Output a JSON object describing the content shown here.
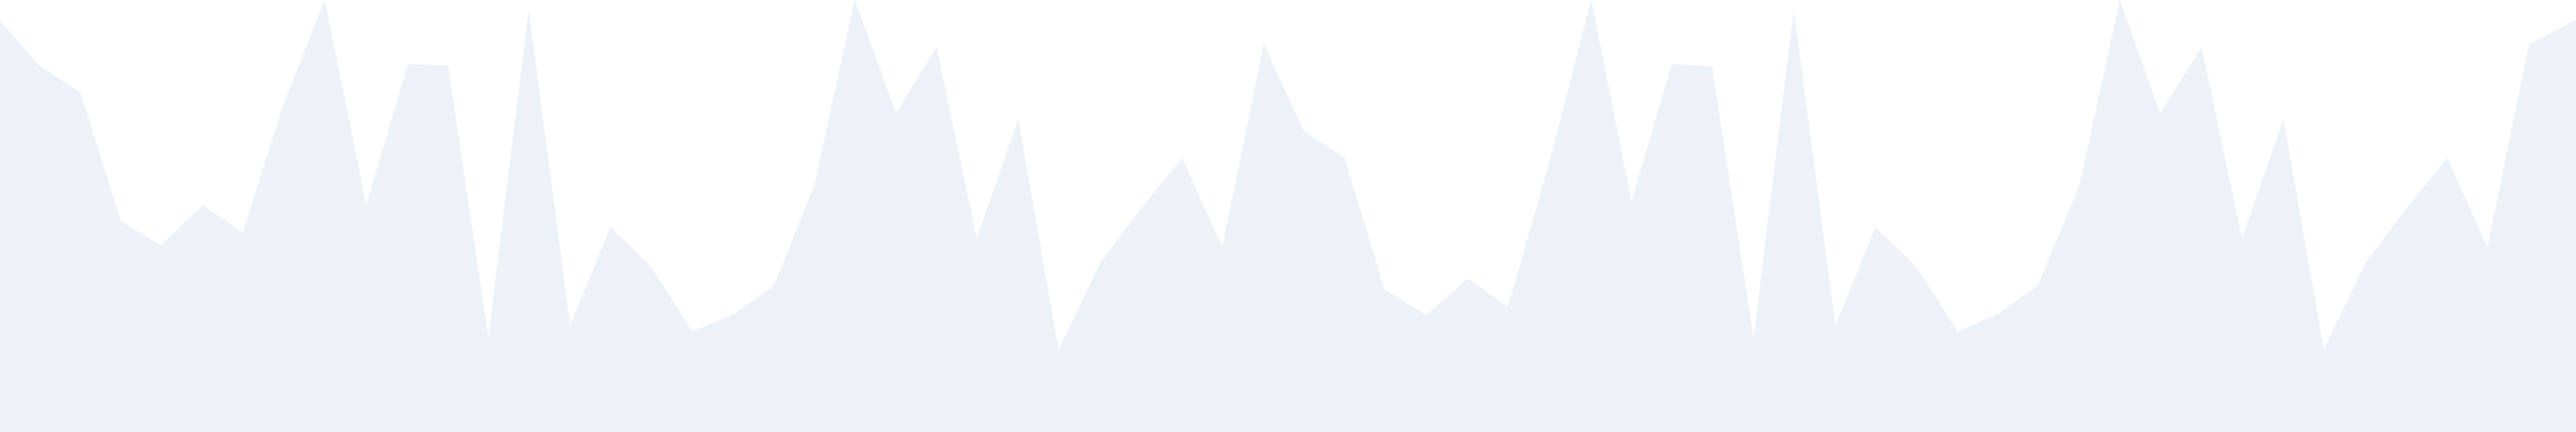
{
  "background": {
    "color": "#ffffff"
  },
  "decoration": {
    "name": "jagged-wave-background",
    "fill_color": "#edf1f8"
  }
}
